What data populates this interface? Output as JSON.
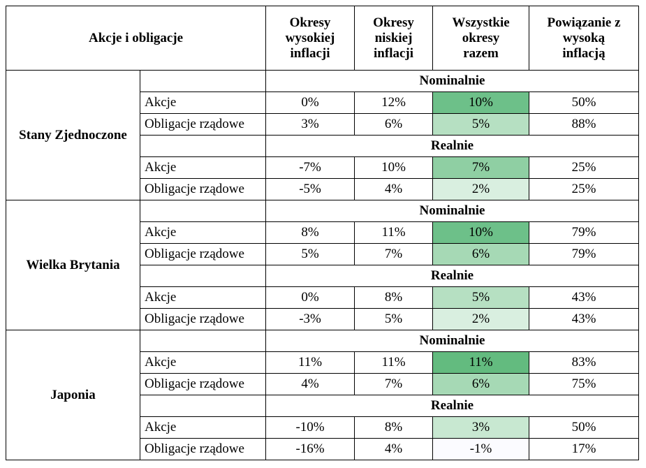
{
  "header": {
    "title": "Akcje i obligacje",
    "columns": [
      [
        "Okresy",
        "wysokiej",
        "inflacji"
      ],
      [
        "Okresy",
        "niskiej",
        "inflacji"
      ],
      [
        "Wszystkie",
        "okresy",
        "razem"
      ],
      [
        "Powiązanie z",
        "wysoką",
        "inflacją"
      ]
    ]
  },
  "groups": [
    {
      "name": "Stany Zjednoczone",
      "sections": [
        {
          "label": "Nominalnie",
          "rows": [
            {
              "label": "Akcje",
              "cells": [
                "0%",
                "12%",
                "10%",
                "50%"
              ],
              "fill": "#6dc089"
            },
            {
              "label": "Obligacje rządowe",
              "cells": [
                "3%",
                "6%",
                "5%",
                "88%"
              ],
              "fill": "#b6e0c2"
            }
          ]
        },
        {
          "label": "Realnie",
          "rows": [
            {
              "label": "Akcje",
              "cells": [
                "-7%",
                "10%",
                "7%",
                "25%"
              ],
              "fill": "#8fcfa3"
            },
            {
              "label": "Obligacje rządowe",
              "cells": [
                "-5%",
                "4%",
                "2%",
                "25%"
              ],
              "fill": "#d9efe0"
            }
          ]
        }
      ]
    },
    {
      "name": "Wielka Brytania",
      "sections": [
        {
          "label": "Nominalnie",
          "rows": [
            {
              "label": "Akcje",
              "cells": [
                "8%",
                "11%",
                "10%",
                "79%"
              ],
              "fill": "#6dc089"
            },
            {
              "label": "Obligacje rządowe",
              "cells": [
                "5%",
                "7%",
                "6%",
                "79%"
              ],
              "fill": "#a6d9b5"
            }
          ]
        },
        {
          "label": "Realnie",
          "rows": [
            {
              "label": "Akcje",
              "cells": [
                "0%",
                "8%",
                "5%",
                "43%"
              ],
              "fill": "#b6e0c2"
            },
            {
              "label": "Obligacje rządowe",
              "cells": [
                "-3%",
                "5%",
                "2%",
                "43%"
              ],
              "fill": "#d9efe0"
            }
          ]
        }
      ]
    },
    {
      "name": "Japonia",
      "sections": [
        {
          "label": "Nominalnie",
          "rows": [
            {
              "label": "Akcje",
              "cells": [
                "11%",
                "11%",
                "11%",
                "83%"
              ],
              "fill": "#63bb7f"
            },
            {
              "label": "Obligacje rządowe",
              "cells": [
                "4%",
                "7%",
                "6%",
                "75%"
              ],
              "fill": "#a6d9b5"
            }
          ]
        },
        {
          "label": "Realnie",
          "rows": [
            {
              "label": "Akcje",
              "cells": [
                "-10%",
                "8%",
                "3%",
                "50%"
              ],
              "fill": "#c8e8d1"
            },
            {
              "label": "Obligacje rządowe",
              "cells": [
                "-16%",
                "4%",
                "-1%",
                "17%"
              ],
              "fill": "#fbfbff"
            }
          ]
        }
      ]
    }
  ]
}
